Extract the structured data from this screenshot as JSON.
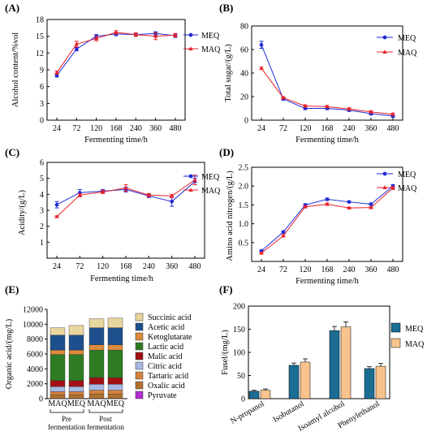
{
  "figure": {
    "colors": {
      "meq": "#1f2bd6",
      "maq": "#e8202a",
      "bar_meq": "#1b6d94",
      "bar_maq": "#f8c38d"
    }
  },
  "chart_data": [
    {
      "panel": "(A)",
      "type": "line",
      "xlabel": "Fermenting time/h",
      "ylabel": "Alcohol content/%vol",
      "categories": [
        "24",
        "72",
        "120",
        "168",
        "240",
        "360",
        "480"
      ],
      "ylim": [
        0,
        18
      ],
      "yticks": [
        "0",
        "3",
        "6",
        "9",
        "12",
        "15",
        "18"
      ],
      "legend_position": "top-right",
      "series": [
        {
          "name": "MEQ",
          "values": [
            8.0,
            12.7,
            15.0,
            15.4,
            15.3,
            15.5,
            15.1
          ],
          "err": [
            0.3,
            0.3,
            0.3,
            0.3,
            0.3,
            0.3,
            0.3
          ]
        },
        {
          "name": "MAQ",
          "values": [
            8.5,
            13.6,
            14.6,
            15.7,
            15.3,
            15.0,
            15.2
          ],
          "err": [
            0.3,
            0.5,
            0.4,
            0.3,
            0.3,
            0.6,
            0.3
          ]
        }
      ]
    },
    {
      "panel": "(B)",
      "type": "line",
      "xlabel": "Fermenting time/h",
      "ylabel": "Total sugar/(g/L)",
      "categories": [
        "24",
        "72",
        "120",
        "168",
        "240",
        "360",
        "480"
      ],
      "ylim": [
        0,
        80
      ],
      "yticks": [
        "0",
        "20",
        "40",
        "60",
        "80"
      ],
      "legend_position": "top-right",
      "series": [
        {
          "name": "MEQ",
          "values": [
            64,
            18,
            10,
            10,
            8.5,
            5.5,
            3.5
          ],
          "err": [
            3,
            1,
            1,
            1,
            1,
            1,
            1
          ]
        },
        {
          "name": "MAQ",
          "values": [
            44,
            19,
            12,
            11.5,
            9.5,
            7,
            5
          ],
          "err": [
            1,
            1,
            1,
            1,
            1,
            1,
            1
          ]
        }
      ]
    },
    {
      "panel": "(C)",
      "type": "line",
      "xlabel": "Fermenting time/h",
      "ylabel": "Acidity/(g/L)",
      "categories": [
        "24",
        "72",
        "120",
        "168",
        "240",
        "360",
        "480"
      ],
      "ylim": [
        0,
        6
      ],
      "yticks": [
        "1",
        "2",
        "3",
        "4",
        "5",
        "6"
      ],
      "legend_position": "top-right",
      "series": [
        {
          "name": "MEQ",
          "values": [
            3.35,
            4.1,
            4.2,
            4.3,
            3.9,
            3.55,
            4.8
          ],
          "err": [
            0.2,
            0.2,
            0.1,
            0.15,
            0.1,
            0.3,
            0.2
          ]
        },
        {
          "name": "MAQ",
          "values": [
            2.6,
            3.95,
            4.15,
            4.4,
            3.95,
            3.9,
            4.9
          ],
          "err": [
            0.05,
            0.1,
            0.1,
            0.2,
            0.1,
            0.1,
            0.3
          ]
        }
      ]
    },
    {
      "panel": "(D)",
      "type": "line",
      "xlabel": "Fermenting time/h",
      "ylabel": "Amino acid nitrogen/(g/L)",
      "categories": [
        "24",
        "72",
        "120",
        "168",
        "240",
        "360",
        "480"
      ],
      "ylim": [
        0,
        2.5
      ],
      "yticks": [
        "0.5",
        "1.0",
        "1.5",
        "2.0",
        "2.5"
      ],
      "legend_position": "top-right",
      "series": [
        {
          "name": "MEQ",
          "values": [
            0.28,
            0.78,
            1.5,
            1.65,
            1.58,
            1.52,
            2.0
          ],
          "err": [
            0.02,
            0.03,
            0.03,
            0.03,
            0.02,
            0.03,
            0.04
          ]
        },
        {
          "name": "MAQ",
          "values": [
            0.22,
            0.68,
            1.45,
            1.52,
            1.42,
            1.43,
            1.95
          ],
          "err": [
            0.02,
            0.03,
            0.03,
            0.03,
            0.02,
            0.02,
            0.04
          ]
        }
      ]
    },
    {
      "panel": "(E)",
      "type": "bar",
      "stacked": true,
      "ylabel": "Organic acid/(mg/L)",
      "categories": [
        "MAQ",
        "MEQ",
        "MAQ",
        "MEQ"
      ],
      "groups": [
        "Pre\nfermentation",
        "Post\nfermentation"
      ],
      "ylim": [
        0,
        12000
      ],
      "yticks": [
        "0",
        "2000",
        "4000",
        "6000",
        "8000",
        "10000",
        "12000"
      ],
      "legend_position": "right",
      "series": [
        {
          "name": "Pyruvate",
          "values": [
            30,
            30,
            30,
            30
          ],
          "color": "#b02bd0"
        },
        {
          "name": "Oxalic acid",
          "values": [
            500,
            500,
            600,
            600
          ],
          "color": "#b0722f"
        },
        {
          "name": "Tartaric acid",
          "values": [
            400,
            400,
            500,
            500
          ],
          "color": "#d4813c"
        },
        {
          "name": "Citric acid",
          "values": [
            700,
            700,
            800,
            800
          ],
          "color": "#a7b8e2"
        },
        {
          "name": "Malic acid",
          "values": [
            800,
            800,
            900,
            900
          ],
          "color": "#a20f14"
        },
        {
          "name": "Lactic acid",
          "values": [
            3500,
            3500,
            3700,
            3700
          ],
          "color": "#2e7b24"
        },
        {
          "name": "Ketoglutarate",
          "values": [
            600,
            600,
            700,
            700
          ],
          "color": "#dc8a3c"
        },
        {
          "name": "Acetic acid",
          "values": [
            2000,
            2000,
            2300,
            2300
          ],
          "color": "#1c4f8c"
        },
        {
          "name": "Succinic acid",
          "values": [
            1000,
            1300,
            1200,
            1300
          ],
          "color": "#e8d6a0"
        }
      ]
    },
    {
      "panel": "(F)",
      "type": "bar",
      "ylabel": "Fusel/(mg/L)",
      "categories": [
        "N-propanol",
        "Isobutanol",
        "Isoamyl alcohol",
        "Phenylethanol"
      ],
      "ylim": [
        0,
        200
      ],
      "yticks": [
        "0",
        "50",
        "100",
        "150",
        "200"
      ],
      "legend_position": "top-right",
      "series": [
        {
          "name": "MEQ",
          "values": [
            16,
            72,
            147,
            65
          ],
          "err": [
            2,
            5,
            9,
            4
          ]
        },
        {
          "name": "MAQ",
          "values": [
            18,
            79,
            155,
            70
          ],
          "err": [
            3,
            7,
            11,
            6
          ]
        }
      ]
    }
  ]
}
